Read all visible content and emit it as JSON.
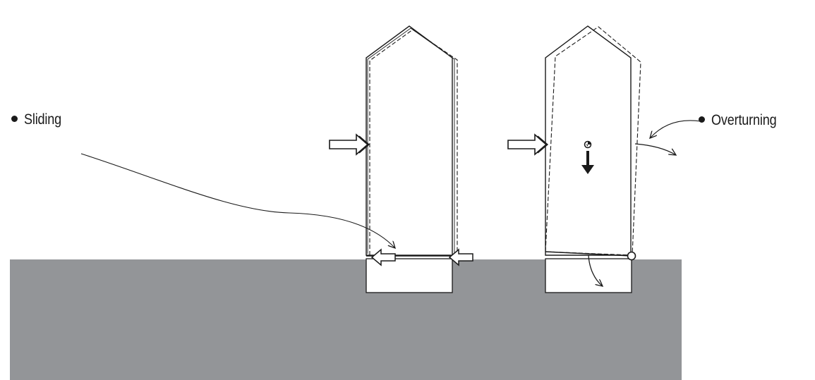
{
  "labels": {
    "sliding": "Sliding",
    "overturning": "Overturning"
  },
  "colors": {
    "ground": "#939598",
    "line": "#1a1a1a",
    "background": "#ffffff"
  },
  "icons": [
    "push-arrow-icon",
    "friction-arrow-icon",
    "gravity-arrow-icon",
    "pivot-point-icon",
    "rotation-arrow-icon"
  ]
}
